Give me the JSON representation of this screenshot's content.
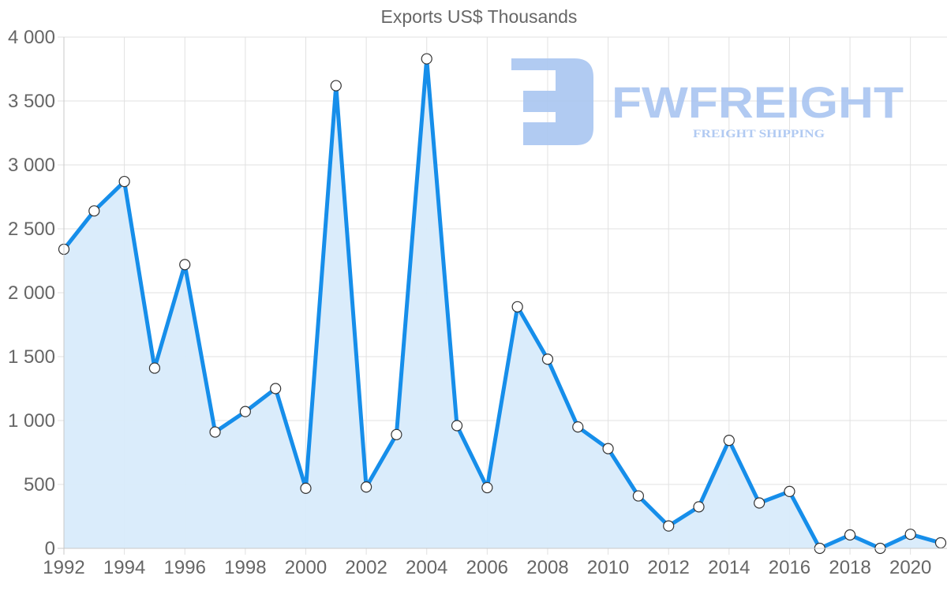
{
  "chart_data": {
    "type": "line",
    "title": "Exports US$ Thousands",
    "xlabel": "",
    "ylabel": "",
    "x": [
      1992,
      1993,
      1994,
      1995,
      1996,
      1997,
      1998,
      1999,
      2000,
      2001,
      2002,
      2003,
      2004,
      2005,
      2006,
      2007,
      2008,
      2009,
      2010,
      2011,
      2012,
      2013,
      2014,
      2015,
      2016,
      2017,
      2018,
      2019,
      2020,
      2021
    ],
    "series": [
      {
        "name": "Exports US$ Thousands",
        "values": [
          2340,
          2640,
          2870,
          1410,
          2220,
          910,
          1070,
          1250,
          470,
          3620,
          480,
          890,
          3830,
          960,
          475,
          1890,
          1480,
          950,
          780,
          410,
          175,
          325,
          845,
          355,
          445,
          0,
          105,
          0,
          110,
          43
        ],
        "color": "#168eea",
        "fill": "#d8ebfb",
        "filled": true
      }
    ],
    "ylim": [
      0,
      4000
    ],
    "xlim": [
      1992,
      2021
    ],
    "yticks": [
      0,
      500,
      1000,
      1500,
      2000,
      2500,
      3000,
      3500,
      4000
    ],
    "ytick_labels": [
      "0",
      "500",
      "1 000",
      "1 500",
      "2 000",
      "2 500",
      "3 000",
      "3 500",
      "4 000"
    ],
    "xticks": [
      1992,
      1994,
      1996,
      1998,
      2000,
      2002,
      2004,
      2006,
      2008,
      2010,
      2012,
      2014,
      2016,
      2018,
      2020
    ],
    "xtick_labels": [
      "1992",
      "1994",
      "1996",
      "1998",
      "2000",
      "2002",
      "2004",
      "2006",
      "2008",
      "2010",
      "2012",
      "2014",
      "2016",
      "2018",
      "2020"
    ],
    "grid": true,
    "legend": null
  },
  "watermark": {
    "brand": "FWFREIGHT",
    "tagline": "FREIGHT SHIPPING",
    "color": "#a9c5f1"
  },
  "colors": {
    "line": "#168eea",
    "fill": "#d8ebfb",
    "grid": "#e1e1e1",
    "text": "#666666",
    "marker_fill": "#ffffff",
    "marker_stroke": "#333333"
  }
}
